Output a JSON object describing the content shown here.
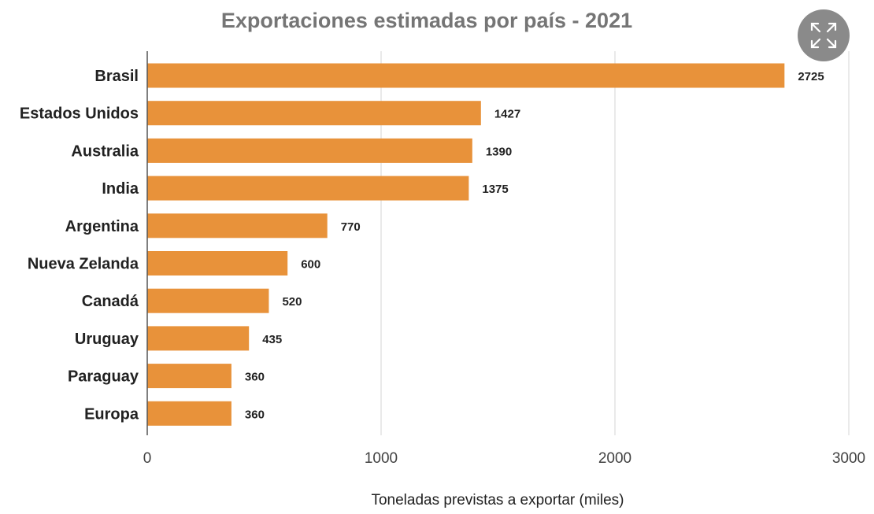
{
  "chart_data": {
    "type": "bar",
    "orientation": "horizontal",
    "title": "Exportaciones estimadas por país - 2021",
    "xlabel": "Toneladas previstas a exportar (miles)",
    "ylabel": "",
    "categories": [
      "Brasil",
      "Estados Unidos",
      "Australia",
      "India",
      "Argentina",
      "Nueva Zelanda",
      "Canadá",
      "Uruguay",
      "Paraguay",
      "Europa"
    ],
    "values": [
      2725,
      1427,
      1390,
      1375,
      770,
      600,
      520,
      435,
      360,
      360
    ],
    "data_labels": [
      "2725",
      "1427",
      "1390",
      "1375",
      "770",
      "600",
      "520",
      "435",
      "360",
      "360"
    ],
    "xlim": [
      0,
      3000
    ],
    "xticks": [
      0,
      1000,
      2000,
      3000
    ],
    "xtick_labels": [
      "0",
      "1000",
      "2000",
      "3000"
    ],
    "grid": "vertical",
    "legend": "none"
  },
  "colors": {
    "bar": "#E8923A",
    "title": "#757575",
    "category_text": "#212121",
    "value_text": "#212121",
    "tick_text": "#424242",
    "axis_label": "#212121",
    "grid": "#DDDDDD",
    "axis": "#555555",
    "fullscreen_button_bg": "#8A8A8A",
    "fullscreen_icon": "#FFFFFF"
  },
  "controls": {
    "fullscreen_icon": "expand-arrows-icon"
  }
}
